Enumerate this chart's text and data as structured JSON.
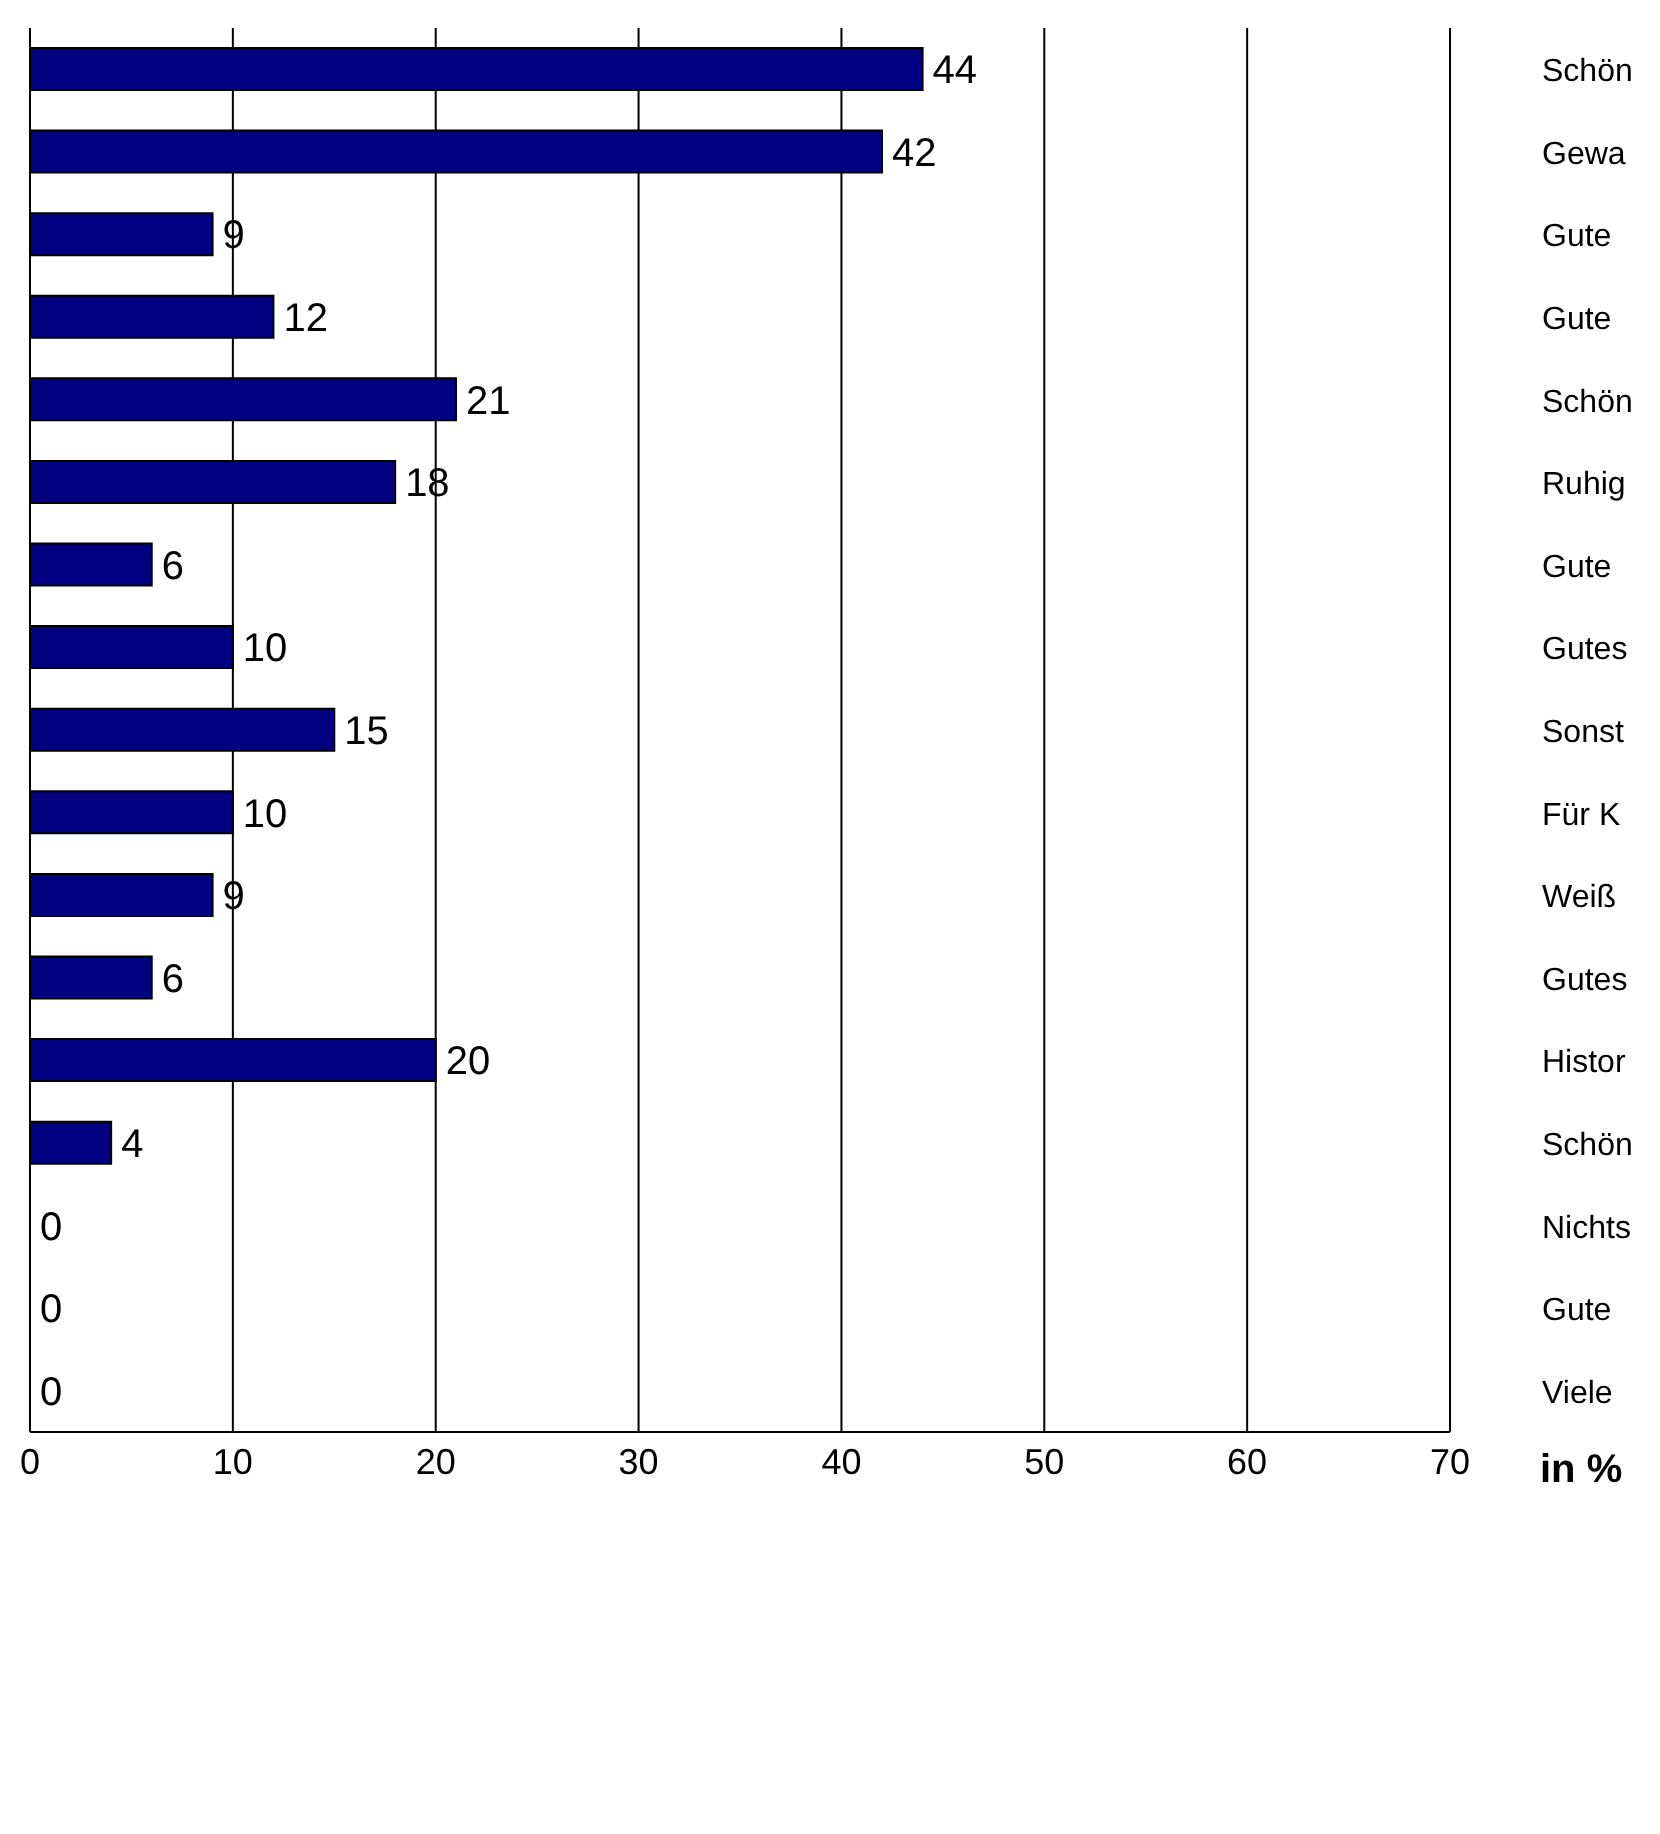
{
  "chart_data": {
    "type": "bar",
    "orientation": "horizontal",
    "xlabel": "in %",
    "categories": [
      "Schön",
      "Gewa",
      "Gute",
      "Gute",
      "Schön",
      "Ruhig",
      "Gute",
      "Gutes",
      "Sonst",
      "Für K",
      "Weiß",
      "Gutes",
      "Histor",
      "Schön",
      "Nichts",
      "Gute",
      "Viele"
    ],
    "values": [
      44,
      42,
      9,
      12,
      21,
      18,
      6,
      10,
      15,
      10,
      9,
      6,
      20,
      4,
      0,
      0,
      0
    ],
    "color": "#000080",
    "xlim": [
      0,
      70
    ],
    "xticks": [
      0,
      10,
      20,
      30,
      40,
      50,
      60,
      70
    ],
    "grid": "x",
    "data_labels": true
  }
}
